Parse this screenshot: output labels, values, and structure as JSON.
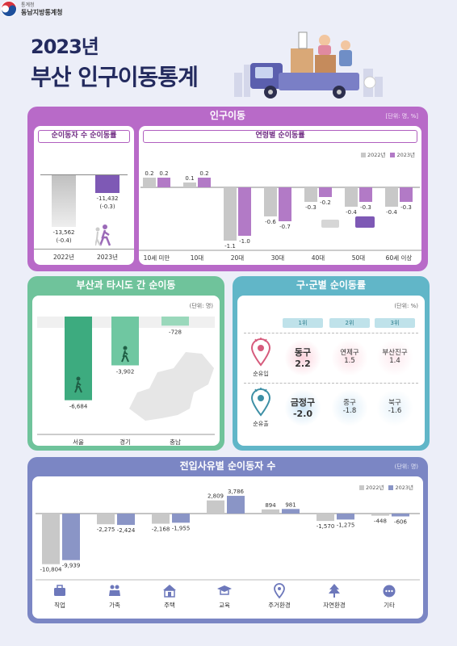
{
  "header": {
    "title_year": "2023년",
    "title_main": "부산 인구이동통계",
    "logo_small": "통계청",
    "logo_org": "동남지방통계청"
  },
  "colors": {
    "c2022": "#c8c8c8",
    "c2023": "#b27ac6",
    "c2023_dark": "#7e59b5",
    "migr_bar": "#3dab7f",
    "migr_bar_light": "#6fc7a1",
    "reason2023": "#8a95c6"
  },
  "migration": {
    "panel_title": "인구이동",
    "unit": "[단위: 명, %]",
    "net_title": "순이동자 수 순이동률",
    "net": [
      {
        "year": "2022년",
        "value_label": "-13,562",
        "rate_label": "(-0.4)"
      },
      {
        "year": "2023년",
        "value_label": "-11,432",
        "rate_label": "(-0.3)"
      }
    ],
    "age_title": "연령별 순이동률",
    "legend": [
      "2022년",
      "2023년"
    ]
  },
  "regions": {
    "panel_title": "부산과 타시도 간 순이동",
    "unit": "(단위: 명)",
    "items": [
      {
        "name": "서울",
        "value": -6684,
        "label": "-6,684"
      },
      {
        "name": "경기",
        "value": -3902,
        "label": "-3,902"
      },
      {
        "name": "충남",
        "value": -728,
        "label": "-728"
      }
    ]
  },
  "districts": {
    "panel_title": "구·군별 순이동률",
    "unit": "(단위: %)",
    "ranks": [
      "1위",
      "2위",
      "3위"
    ],
    "inflow_label": "순유입",
    "outflow_label": "순유출",
    "inflow": [
      {
        "name": "동구",
        "value": "2.2"
      },
      {
        "name": "연제구",
        "value": "1.5"
      },
      {
        "name": "부산진구",
        "value": "1.4"
      }
    ],
    "outflow": [
      {
        "name": "금정구",
        "value": "-2.0"
      },
      {
        "name": "중구",
        "value": "-1.8"
      },
      {
        "name": "북구",
        "value": "-1.6"
      }
    ]
  },
  "reasons": {
    "panel_title": "전입사유별 순이동자 수",
    "unit": "(단위: 명)",
    "legend": [
      "2022년",
      "2023년"
    ]
  },
  "chart_data": [
    {
      "type": "bar",
      "title": "연령별 순이동률",
      "categories": [
        "10세 미만",
        "10대",
        "20대",
        "30대",
        "40대",
        "50대",
        "60세 이상"
      ],
      "series": [
        {
          "name": "2022년",
          "values": [
            0.2,
            0.1,
            -1.1,
            -0.6,
            -0.3,
            -0.4,
            -0.4
          ]
        },
        {
          "name": "2023년",
          "values": [
            0.2,
            0.2,
            -1.0,
            -0.7,
            -0.2,
            -0.3,
            -0.3
          ]
        }
      ],
      "value_labels": {
        "2022년": [
          "0.2",
          "0.1",
          "-1.1",
          "-0.6",
          "-0.3",
          "-0.4",
          "-0.4"
        ],
        "2023년": [
          "0.2",
          "0.2",
          "-1.0",
          "-0.7",
          "-0.2",
          "-0.3",
          "-0.3"
        ]
      }
    },
    {
      "type": "bar",
      "title": "전입사유별 순이동자 수",
      "categories": [
        "직업",
        "가족",
        "주택",
        "교육",
        "주거환경",
        "자연환경",
        "기타"
      ],
      "icons": [
        "briefcase-icon",
        "family-icon",
        "house-icon",
        "education-icon",
        "location-pin-icon",
        "tree-icon",
        "more-icon"
      ],
      "series": [
        {
          "name": "2022년",
          "values": [
            -10804,
            -2275,
            -2168,
            2809,
            894,
            -1570,
            -448
          ]
        },
        {
          "name": "2023년",
          "values": [
            -9939,
            -2424,
            -1955,
            3786,
            981,
            -1275,
            -606
          ]
        }
      ],
      "value_labels": {
        "2022년": [
          "-10,804",
          "-2,275",
          "-2,168",
          "2,809",
          "894",
          "-1,570",
          "-448"
        ],
        "2023년": [
          "-9,939",
          "-2,424",
          "-1,955",
          "3,786",
          "981",
          "-1,275",
          "-606"
        ]
      }
    }
  ]
}
